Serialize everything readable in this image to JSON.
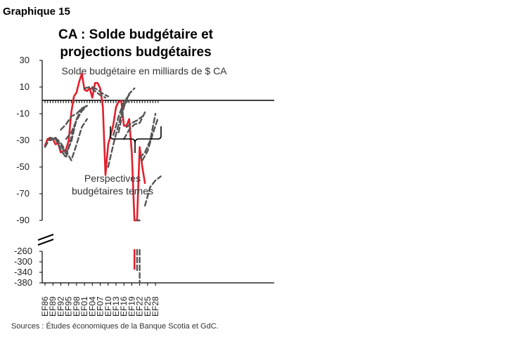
{
  "figure_label": "Graphique 15",
  "source": "Sources : Études économiques de la Banque Scotia et GdC.",
  "chart_data": {
    "type": "line",
    "title_lines": [
      "CA : Solde budgétaire et",
      "projections budgétaires"
    ],
    "subtitle": "Solde budgétaire en milliards de $ CA",
    "annotation_lines": [
      "Perspectives",
      "budgétaires ternes"
    ],
    "x_tick_labels": [
      "EF86",
      "EF89",
      "EF92",
      "EF95",
      "EF98",
      "EF01",
      "EF04",
      "EF07",
      "EF10",
      "EF13",
      "EF16",
      "EF19",
      "EF22",
      "EF25",
      "EF28"
    ],
    "y_upper": {
      "ylim": [
        -90,
        30
      ],
      "ticks": [
        30,
        10,
        -10,
        -30,
        -50,
        -70,
        -90
      ]
    },
    "y_lower": {
      "ylim": [
        -380,
        -260
      ],
      "ticks": [
        -260,
        -300,
        -340,
        -380
      ]
    },
    "axis_break": true,
    "colors": {
      "actual": "#e41e2b",
      "projection": "#555555",
      "axis": "#000000"
    },
    "series": [
      {
        "style": "solid",
        "x": [
          1986,
          1987,
          1988,
          1989,
          1990,
          1991,
          1992,
          1993,
          1994,
          1995,
          1996,
          1997,
          1998,
          1999,
          2000,
          2001,
          2002,
          2003,
          2004,
          2005,
          2006,
          2007,
          2008,
          2009,
          2010,
          2011,
          2012,
          2013,
          2014,
          2015,
          2016,
          2017,
          2018,
          2019,
          2020,
          2021,
          2022,
          2023,
          2024
        ],
        "y": [
          -34,
          -29,
          -28,
          -29,
          -33,
          -32,
          -39,
          -38,
          -37,
          -30,
          -9,
          3,
          6,
          14,
          20,
          8,
          7,
          9,
          2,
          13,
          13,
          9,
          -5,
          -56,
          -33,
          -26,
          -18,
          -5,
          -1,
          -0.5,
          -19,
          -19,
          -14,
          -39,
          -327,
          -90,
          -35,
          -50,
          -62
        ]
      },
      {
        "style": "dashed",
        "x": [
          1986,
          1988,
          1990,
          1992,
          1994,
          1996,
          1998
        ],
        "y": [
          -35,
          -28,
          -29,
          -37,
          -43,
          -28,
          -14
        ]
      },
      {
        "style": "dashed",
        "x": [
          1988,
          1990,
          1992,
          1994,
          1996,
          1998,
          2000
        ],
        "y": [
          -30,
          -28,
          -34,
          -40,
          -31,
          -14,
          -6
        ]
      },
      {
        "style": "dashed",
        "x": [
          1990,
          1992,
          1994,
          1996,
          1998,
          2000,
          2002
        ],
        "y": [
          -28,
          -32,
          -38,
          -45,
          -33,
          -20,
          -14
        ]
      },
      {
        "style": "dashed",
        "x": [
          1992,
          1994,
          1996,
          1998,
          2000,
          2002
        ],
        "y": [
          -22,
          -18,
          -12,
          -10,
          -6,
          -4
        ]
      },
      {
        "style": "dashed",
        "x": [
          1994,
          1996,
          1998,
          2000,
          2002
        ],
        "y": [
          -29,
          -24,
          -15,
          -8,
          -4
        ]
      },
      {
        "style": "dashed",
        "x": [
          2001,
          2003,
          2005,
          2007,
          2009
        ],
        "y": [
          9,
          10,
          7,
          4,
          2
        ]
      },
      {
        "style": "dashed",
        "x": [
          2004,
          2006,
          2008,
          2010
        ],
        "y": [
          10,
          8,
          5,
          3
        ]
      },
      {
        "style": "dashed",
        "x": [
          2010,
          2012,
          2014,
          2016,
          2018
        ],
        "y": [
          -50,
          -33,
          -18,
          -3,
          0
        ]
      },
      {
        "style": "dashed",
        "x": [
          2012,
          2014,
          2016,
          2018
        ],
        "y": [
          -26,
          -12,
          -1,
          4
        ]
      },
      {
        "style": "dashed",
        "x": [
          2014,
          2016,
          2018,
          2020
        ],
        "y": [
          -24,
          -5,
          5,
          9
        ]
      },
      {
        "style": "dashed",
        "x": [
          2016,
          2018,
          2020,
          2022,
          2024
        ],
        "y": [
          -29,
          -22,
          -18,
          -17,
          -9
        ]
      },
      {
        "style": "dashed",
        "x": [
          2017,
          2019,
          2021,
          2023
        ],
        "y": [
          -20,
          -17,
          -15,
          -12
        ]
      },
      {
        "style": "dashed",
        "x": [
          2022,
          2024,
          2026,
          2028
        ],
        "y": [
          -43,
          -39,
          -30,
          -10
        ]
      },
      {
        "style": "dashed",
        "x": [
          2023,
          2025,
          2027,
          2029
        ],
        "y": [
          -45,
          -38,
          -25,
          -13
        ]
      },
      {
        "style": "dashed",
        "x": [
          2024,
          2026,
          2028,
          2030
        ],
        "y": [
          -79,
          -65,
          -60,
          -57
        ]
      },
      {
        "style": "dashed",
        "x": [
          2021,
          2022
        ],
        "y": [
          -335,
          -380
        ]
      }
    ]
  }
}
